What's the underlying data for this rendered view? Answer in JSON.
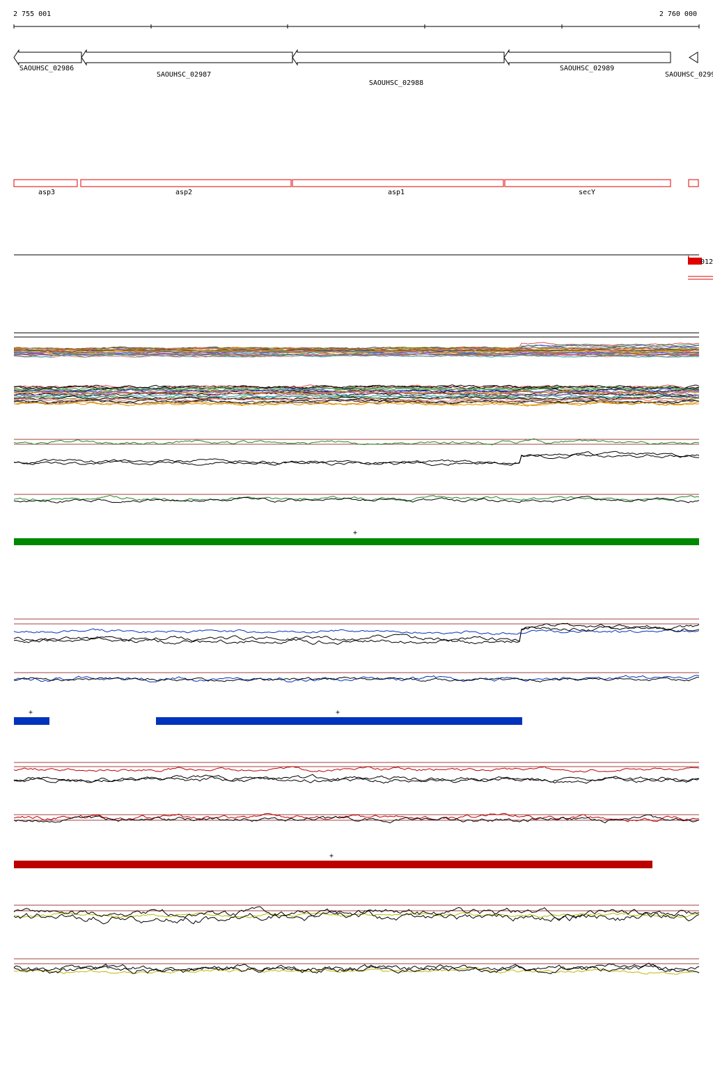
{
  "ruler": {
    "start": "2 755 001",
    "end": "2 760 000"
  },
  "genes": [
    {
      "label": "SAOUHSC_02986"
    },
    {
      "label": "SAOUHSC_02987"
    },
    {
      "label": "SAOUHSC_02988"
    },
    {
      "label": "SAOUHSC_02989"
    },
    {
      "label": "SAOUHSC_0299"
    }
  ],
  "features": [
    {
      "label": "asp3"
    },
    {
      "label": "asp2"
    },
    {
      "label": "asp1"
    },
    {
      "label": "secY"
    }
  ],
  "annotation": {
    "label": "012"
  },
  "markers": [
    "+",
    "+",
    "+",
    "+"
  ]
}
